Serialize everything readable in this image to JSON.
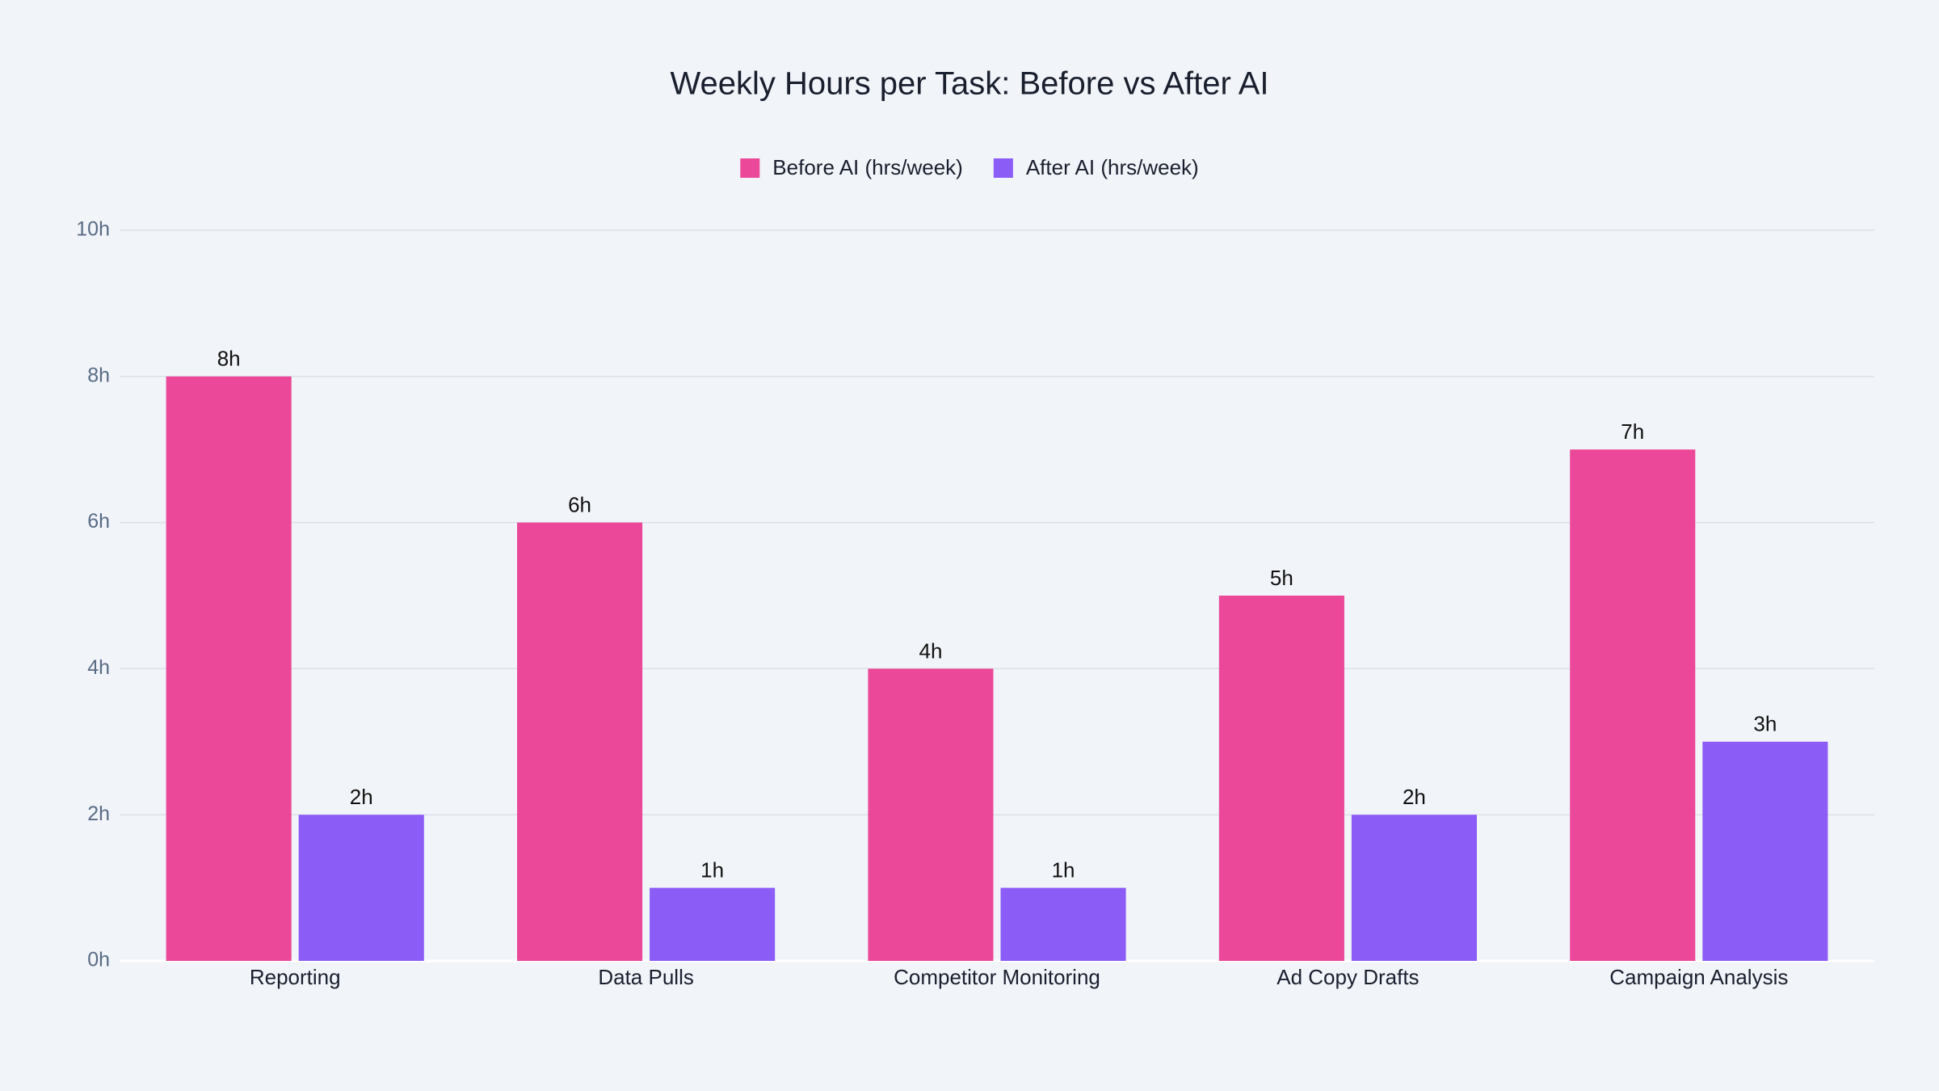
{
  "chart_data": {
    "type": "bar",
    "title": "Weekly Hours per Task: Before vs After AI",
    "categories": [
      "Reporting",
      "Data Pulls",
      "Competitor Monitoring",
      "Ad Copy Drafts",
      "Campaign Analysis"
    ],
    "series": [
      {
        "name": "Before AI (hrs/week)",
        "color": "#EC4899",
        "values": [
          8,
          6,
          4,
          5,
          7
        ],
        "value_labels": [
          "8h",
          "6h",
          "4h",
          "5h",
          "7h"
        ]
      },
      {
        "name": "After AI (hrs/week)",
        "color": "#8B5CF6",
        "values": [
          2,
          1,
          1,
          2,
          3
        ],
        "value_labels": [
          "2h",
          "1h",
          "1h",
          "2h",
          "3h"
        ]
      }
    ],
    "ylim": [
      0,
      10
    ],
    "yticks": [
      {
        "value": 0,
        "label": "0h"
      },
      {
        "value": 2,
        "label": "2h"
      },
      {
        "value": 4,
        "label": "4h"
      },
      {
        "value": 6,
        "label": "6h"
      },
      {
        "value": 8,
        "label": "8h"
      },
      {
        "value": 10,
        "label": "10h"
      }
    ],
    "grid": true,
    "legend": "top"
  }
}
